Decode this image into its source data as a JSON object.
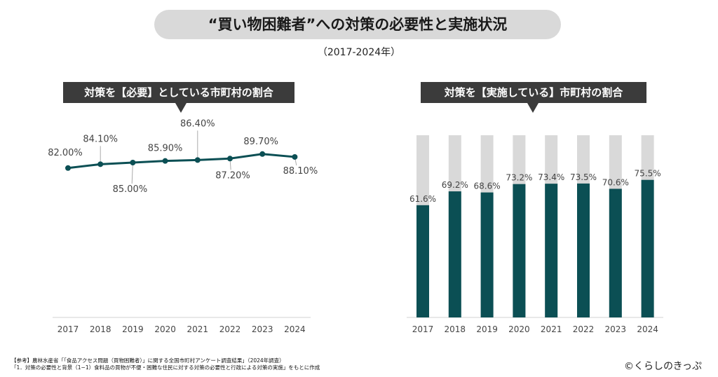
{
  "title": "“買い物困難者”への対策の必要性と実施状況",
  "subtitle": "（2017-2024年）",
  "colors": {
    "teal": "#0b4f54",
    "grey": "#d9d9d9",
    "callout": "#3b3b3b"
  },
  "chart_data": [
    {
      "type": "line",
      "title": "対策を【必要】としている市町村の割合",
      "categories": [
        "2017",
        "2018",
        "2019",
        "2020",
        "2021",
        "2022",
        "2023",
        "2024"
      ],
      "values": [
        82.0,
        84.1,
        85.0,
        85.9,
        86.4,
        87.2,
        89.7,
        88.1
      ],
      "labels": [
        "82.00%",
        "84.10%",
        "85.00%",
        "85.90%",
        "86.40%",
        "87.20%",
        "89.70%",
        "88.10%"
      ],
      "ylim": [
        0,
        100
      ],
      "grid": false
    },
    {
      "type": "bar",
      "title": "対策を【実施している】市町村の割合",
      "categories": [
        "2017",
        "2018",
        "2019",
        "2020",
        "2021",
        "2022",
        "2023",
        "2024"
      ],
      "values": [
        61.6,
        69.2,
        68.6,
        73.2,
        73.4,
        73.5,
        70.6,
        75.5
      ],
      "labels": [
        "61.6%",
        "69.2%",
        "68.6%",
        "73.2%",
        "73.4%",
        "73.5%",
        "70.6%",
        "75.5%"
      ],
      "ylim": [
        0,
        100
      ],
      "grid": false,
      "stacked_remainder_to": 100
    }
  ],
  "source": {
    "line1": "【参考】農林水産省「「食品アクセス問題（買物困難者）」に関する全国市町村アンケート調査結果」（2024年調査）",
    "line2": "「1．対策の必要性と背景（1−1）食料品の買物が不便・困難な住民に対する対策の必要性と行政による対策の実施」をもとに作成"
  },
  "logo": "©くらしのきっぷ"
}
